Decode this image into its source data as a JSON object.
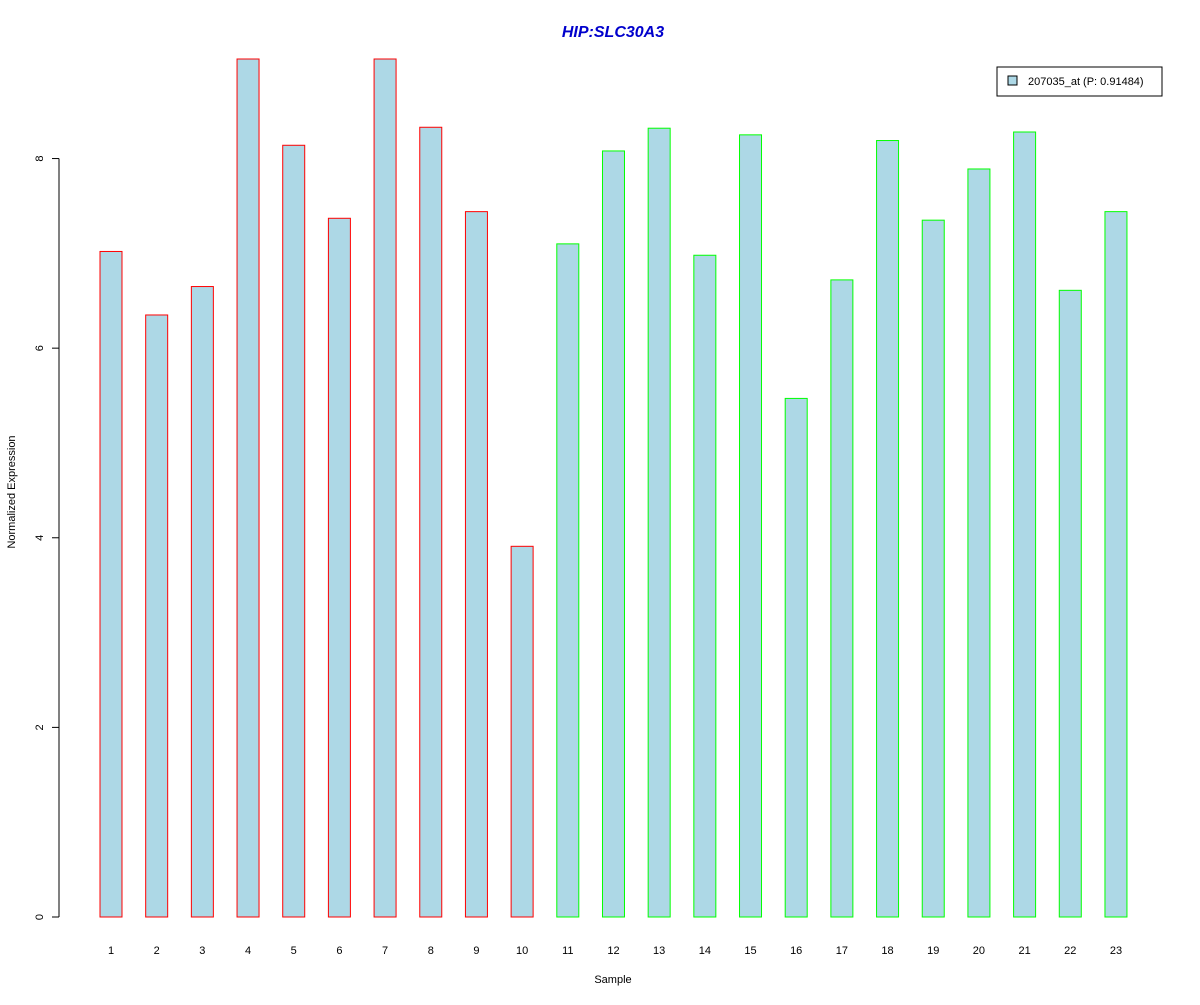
{
  "chart_data": {
    "type": "bar",
    "title": "HIP:SLC30A3",
    "xlabel": "Sample",
    "ylabel": "Normalized Expression",
    "categories": [
      "1",
      "2",
      "3",
      "4",
      "5",
      "6",
      "7",
      "8",
      "9",
      "10",
      "11",
      "12",
      "13",
      "14",
      "15",
      "16",
      "17",
      "18",
      "19",
      "20",
      "21",
      "22",
      "23"
    ],
    "series": [
      {
        "name": "207035_at (P: 0.91484)",
        "values": [
          7.02,
          6.35,
          6.65,
          9.05,
          8.14,
          7.37,
          9.05,
          8.33,
          7.44,
          3.91,
          7.1,
          8.08,
          8.32,
          6.98,
          8.25,
          5.47,
          6.72,
          8.19,
          7.35,
          7.89,
          8.28,
          6.61,
          7.44
        ]
      }
    ],
    "ylim": [
      0,
      9.05
    ],
    "yticks": [
      0,
      2,
      4,
      6,
      8
    ],
    "legend_position": "top-right",
    "grid": false,
    "colors": {
      "bar_fill": "#add8e6",
      "group1_border": "#ff0000",
      "group2_border": "#00ff00",
      "title": "#0000cc"
    },
    "group_borders": [
      "group1_border",
      "group1_border",
      "group1_border",
      "group1_border",
      "group1_border",
      "group1_border",
      "group1_border",
      "group1_border",
      "group1_border",
      "group1_border",
      "group2_border",
      "group2_border",
      "group2_border",
      "group2_border",
      "group2_border",
      "group2_border",
      "group2_border",
      "group2_border",
      "group2_border",
      "group2_border",
      "group2_border",
      "group2_border",
      "group2_border"
    ]
  }
}
